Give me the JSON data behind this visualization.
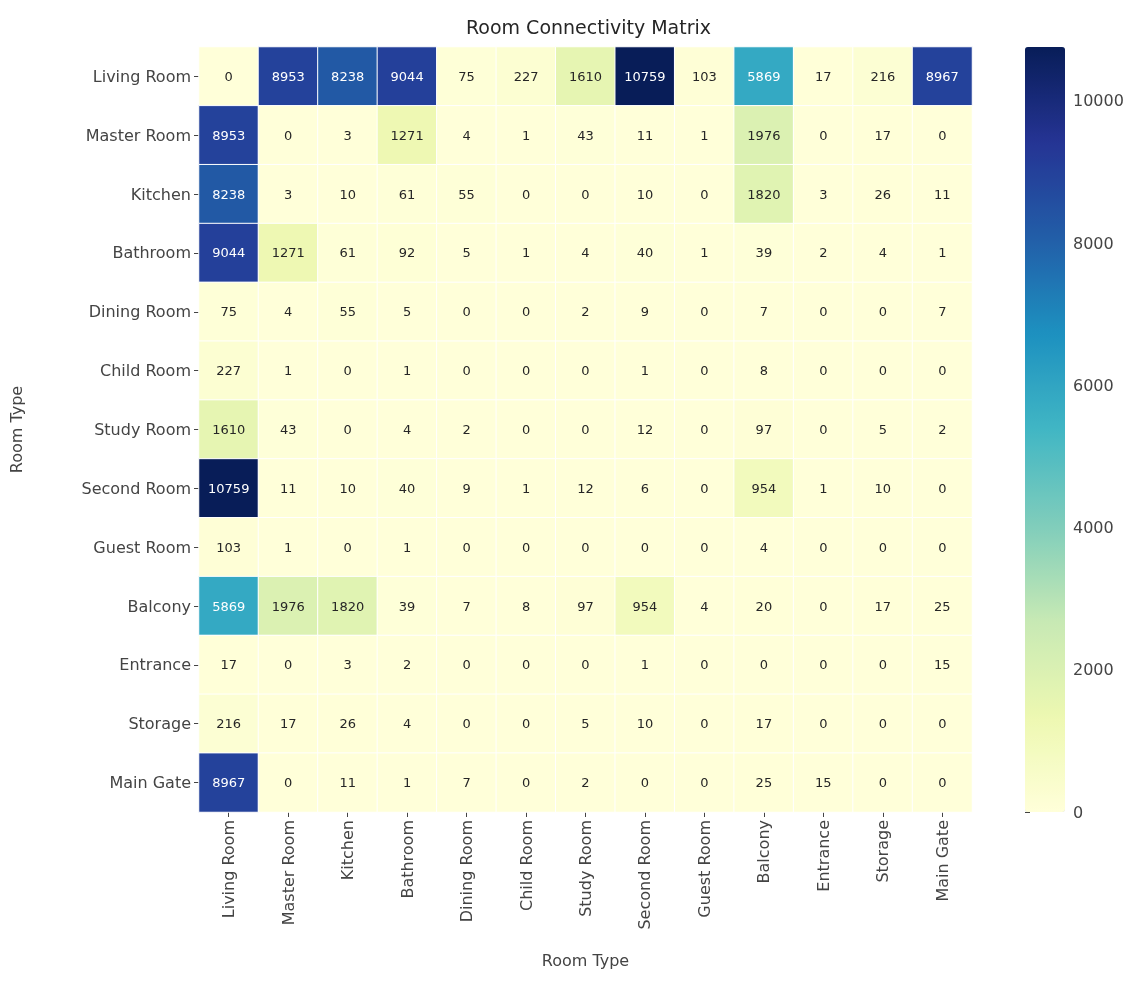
{
  "chart_data": {
    "type": "heatmap",
    "title": "Room Connectivity Matrix",
    "xlabel": "Room Type",
    "ylabel": "Room Type",
    "categories": [
      "Living Room",
      "Master Room",
      "Kitchen",
      "Bathroom",
      "Dining Room",
      "Child Room",
      "Study Room",
      "Second Room",
      "Guest Room",
      "Balcony",
      "Entrance",
      "Storage",
      "Main Gate"
    ],
    "y_categories": [
      "Living Room",
      "Master Room",
      "Kitchen",
      "Bathroom",
      "Dining Room",
      "Child Room",
      "Study Room",
      "Second Room",
      "Guest Room",
      "Balcony",
      "Entrance",
      "Storage",
      "Main Gate"
    ],
    "cells": [
      [
        0,
        8953,
        8238,
        9044,
        75,
        227,
        1610,
        10759,
        103,
        5869,
        17,
        216,
        8967
      ],
      [
        8953,
        0,
        3,
        1271,
        4,
        1,
        43,
        11,
        1,
        1976,
        0,
        17,
        0
      ],
      [
        8238,
        3,
        10,
        61,
        55,
        0,
        0,
        10,
        0,
        1820,
        3,
        26,
        11
      ],
      [
        9044,
        1271,
        61,
        92,
        5,
        1,
        4,
        40,
        1,
        39,
        2,
        4,
        1
      ],
      [
        75,
        4,
        55,
        5,
        0,
        0,
        2,
        9,
        0,
        7,
        0,
        0,
        7
      ],
      [
        227,
        1,
        0,
        1,
        0,
        0,
        0,
        1,
        0,
        8,
        0,
        0,
        0
      ],
      [
        1610,
        43,
        0,
        4,
        2,
        0,
        0,
        12,
        0,
        97,
        0,
        5,
        2
      ],
      [
        10759,
        11,
        10,
        40,
        9,
        1,
        12,
        6,
        0,
        954,
        1,
        10,
        0
      ],
      [
        103,
        1,
        0,
        1,
        0,
        0,
        0,
        0,
        0,
        4,
        0,
        0,
        0
      ],
      [
        5869,
        1976,
        1820,
        39,
        7,
        8,
        97,
        954,
        4,
        20,
        0,
        17,
        25
      ],
      [
        17,
        0,
        3,
        2,
        0,
        0,
        0,
        1,
        0,
        0,
        0,
        0,
        15
      ],
      [
        216,
        17,
        26,
        4,
        0,
        0,
        5,
        10,
        0,
        17,
        0,
        0,
        0
      ],
      [
        8967,
        0,
        11,
        1,
        7,
        0,
        2,
        0,
        0,
        25,
        15,
        0,
        0
      ]
    ],
    "clim": [
      0,
      10759
    ],
    "cticks": [
      0,
      2000,
      4000,
      6000,
      8000,
      10000
    ],
    "data_labels": true
  }
}
